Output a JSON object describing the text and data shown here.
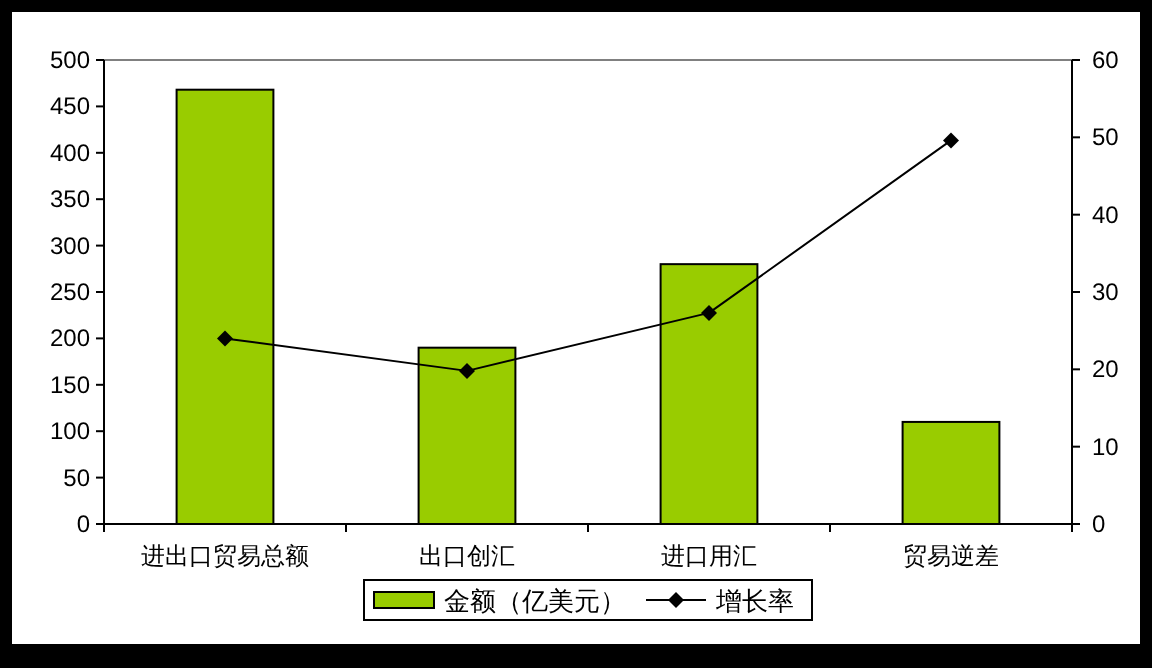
{
  "chart_data": {
    "type": "bar",
    "categories": [
      "进出口贸易总额",
      "出口创汇",
      "进口用汇",
      "贸易逆差"
    ],
    "series": [
      {
        "name": "金额（亿美元）",
        "color": "#99cc00",
        "values": [
          468,
          190,
          280,
          110
        ]
      },
      {
        "name": "增长率",
        "type": "line",
        "axis": "y2",
        "color": "#000000",
        "marker": "diamond",
        "values": [
          24.0,
          19.8,
          27.3,
          49.6
        ]
      }
    ],
    "ylim": [
      0,
      500
    ],
    "yticks": [
      0,
      50,
      100,
      150,
      200,
      250,
      300,
      350,
      400,
      450,
      500
    ],
    "y2lim": [
      0,
      60
    ],
    "y2ticks": [
      0,
      10,
      20,
      30,
      40,
      50,
      60
    ],
    "legend": "bottom",
    "grid": false
  }
}
